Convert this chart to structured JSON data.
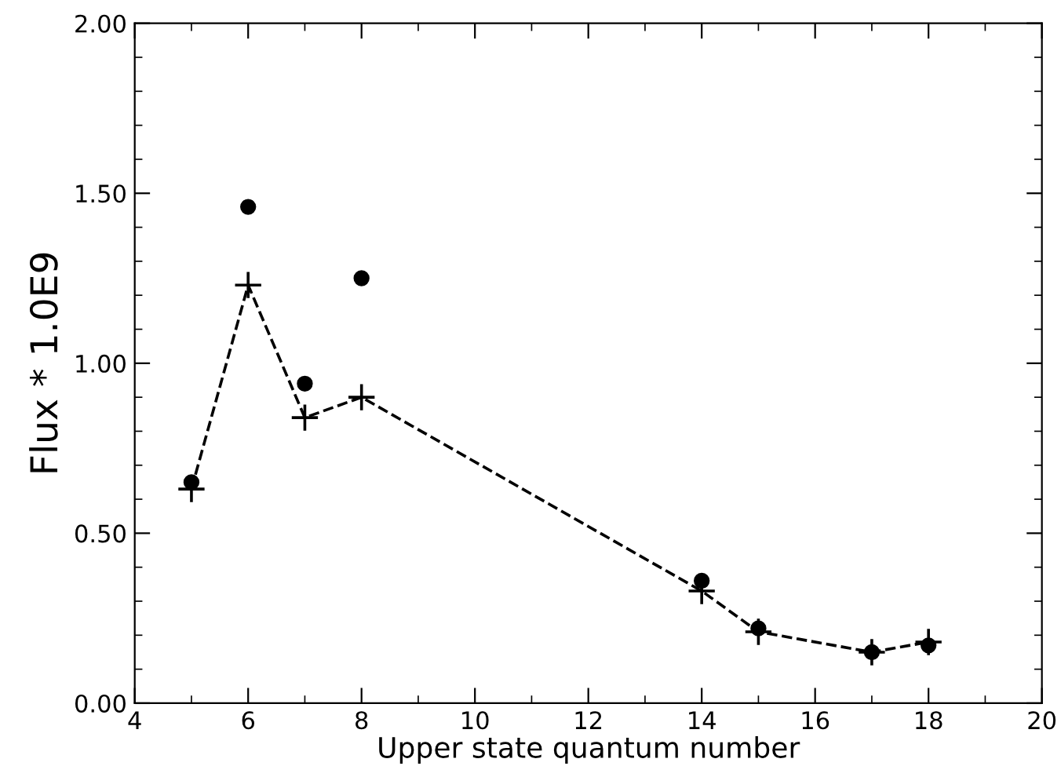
{
  "chart_data": {
    "type": "line",
    "xlabel": "Upper state quantum number",
    "ylabel": "Flux * 1.0E9",
    "xlim": [
      4,
      20
    ],
    "xticks": [
      4,
      6,
      8,
      10,
      12,
      14,
      16,
      18,
      20
    ],
    "ylim": [
      0,
      2
    ],
    "yticks": [
      {
        "value": 0,
        "label": "0.00"
      },
      {
        "value": 0.5,
        "label": "0.50"
      },
      {
        "value": 1,
        "label": "1.00"
      },
      {
        "value": 1.5,
        "label": "1.50"
      },
      {
        "value": 2,
        "label": "2.00"
      }
    ],
    "series": [
      {
        "type": "scatter",
        "color": "#000000",
        "marker": "circle",
        "x": [
          5,
          6,
          7,
          8,
          14,
          15,
          17,
          18
        ],
        "values": [
          0.65,
          1.46,
          0.94,
          1.25,
          0.36,
          0.22,
          0.15,
          0.17
        ]
      },
      {
        "color": "#000000",
        "marker": "cross",
        "line_style": "dashed",
        "x": [
          5,
          6,
          7,
          8,
          14,
          15,
          17,
          18
        ],
        "values": [
          0.63,
          1.23,
          0.84,
          0.9,
          0.33,
          0.21,
          0.15,
          0.18
        ]
      }
    ],
    "grid": false,
    "legend": false
  }
}
